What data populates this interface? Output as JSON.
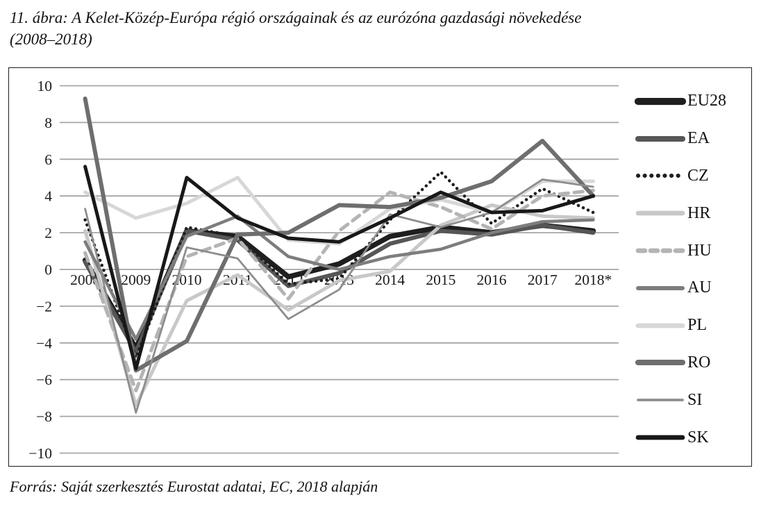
{
  "figure": {
    "title_line1": "11. ábra: A Kelet-Közép-Európa régió országainak és az eurózóna gazdasági növekedése",
    "title_line2": "(2008–2018)",
    "source": "Forrás: Saját szerkesztés Eurostat adatai, EC, 2018 alapján"
  },
  "chart_data": {
    "type": "line",
    "title": "11. ábra: A Kelet-Közép-Európa régió országainak és az eurózóna gazdasági növekedése (2008–2018)",
    "xlabel": "",
    "ylabel": "",
    "categories": [
      "2008",
      "2009",
      "2010",
      "2011",
      "2012",
      "2013",
      "2014",
      "2015",
      "2016",
      "2017",
      "2018*"
    ],
    "ylim": [
      -10,
      10
    ],
    "ytick_step": 2,
    "ytick_labels": [
      "10",
      "8",
      "6",
      "4",
      "2",
      "0",
      "−2",
      "−4",
      "−6",
      "−8",
      "−10"
    ],
    "grid": true,
    "gridline_color": "#a6a6a6",
    "legend_position": "right",
    "x_labels_at_zero_axis": true,
    "series": [
      {
        "name": "EU28",
        "style": "solid",
        "color": "#1f1f1f",
        "width": 7.5,
        "values": [
          0.5,
          -4.3,
          2.1,
          1.8,
          -0.4,
          0.3,
          1.8,
          2.3,
          2.0,
          2.4,
          2.1
        ]
      },
      {
        "name": "EA",
        "style": "solid",
        "color": "#565656",
        "width": 6.0,
        "values": [
          0.4,
          -4.5,
          2.1,
          1.6,
          -0.9,
          -0.2,
          1.4,
          2.1,
          1.9,
          2.4,
          2.0
        ]
      },
      {
        "name": "CZ",
        "style": "dotted",
        "color": "#1f1f1f",
        "width": 4.5,
        "values": [
          2.7,
          -4.8,
          2.3,
          1.8,
          -0.8,
          -0.5,
          2.7,
          5.3,
          2.5,
          4.4,
          3.1
        ]
      },
      {
        "name": "HR",
        "style": "solid",
        "color": "#c8c8c8",
        "width": 5.0,
        "values": [
          2.1,
          -7.4,
          -1.7,
          -0.3,
          -2.2,
          -0.6,
          -0.1,
          2.4,
          3.5,
          2.9,
          2.8
        ]
      },
      {
        "name": "HU",
        "style": "dashed",
        "color": "#b4b4b4",
        "width": 5.0,
        "values": [
          0.9,
          -6.6,
          0.7,
          1.7,
          -1.6,
          2.1,
          4.2,
          3.4,
          2.2,
          4.0,
          4.3
        ]
      },
      {
        "name": "AU",
        "style": "solid",
        "color": "#7d7d7d",
        "width": 4.5,
        "values": [
          1.5,
          -3.8,
          1.8,
          2.9,
          0.7,
          0.0,
          0.7,
          1.1,
          2.0,
          2.6,
          2.7
        ]
      },
      {
        "name": "PL",
        "style": "solid",
        "color": "#d7d7d7",
        "width": 5.0,
        "values": [
          4.2,
          2.8,
          3.6,
          5.0,
          1.6,
          1.4,
          3.3,
          3.8,
          3.1,
          4.8,
          4.8
        ]
      },
      {
        "name": "RO",
        "style": "solid",
        "color": "#6e6e6e",
        "width": 6.0,
        "values": [
          9.3,
          -5.5,
          -3.9,
          1.9,
          2.0,
          3.5,
          3.4,
          3.9,
          4.8,
          7.0,
          4.0
        ]
      },
      {
        "name": "SI",
        "style": "solid",
        "color": "#8d8d8d",
        "width": 2.8,
        "values": [
          3.3,
          -7.8,
          1.2,
          0.6,
          -2.7,
          -1.1,
          3.0,
          2.3,
          3.1,
          4.9,
          4.5
        ]
      },
      {
        "name": "SK",
        "style": "solid",
        "color": "#181818",
        "width": 5.0,
        "values": [
          5.6,
          -5.4,
          5.0,
          2.8,
          1.7,
          1.5,
          2.8,
          4.2,
          3.1,
          3.2,
          4.0
        ]
      }
    ]
  }
}
